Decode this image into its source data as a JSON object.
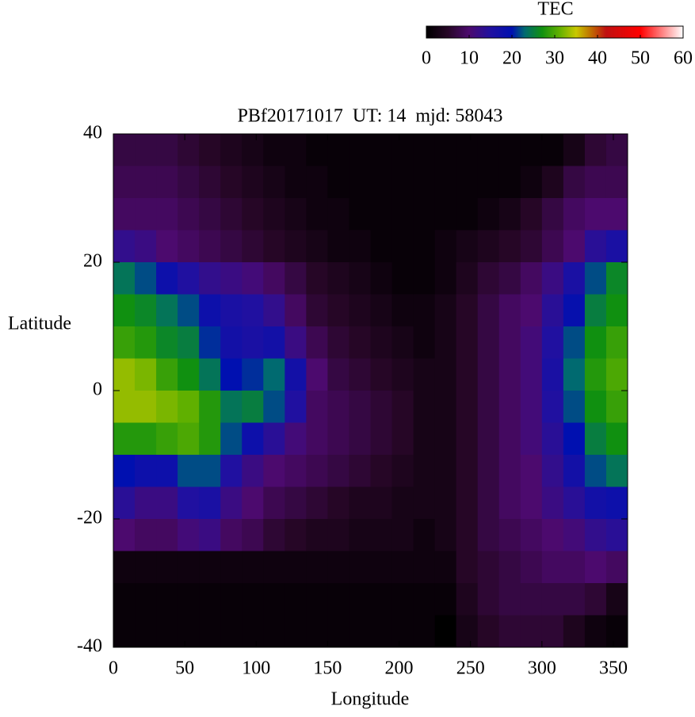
{
  "chart_data": {
    "type": "heatmap",
    "title": "PBf20171017  UT: 14  mjd: 58043",
    "xlabel": "Longitude",
    "ylabel": "Latitude",
    "colorbar_label": "TEC",
    "x": [
      7.5,
      22.5,
      37.5,
      52.5,
      67.5,
      82.5,
      97.5,
      112.5,
      127.5,
      142.5,
      157.5,
      172.5,
      187.5,
      202.5,
      217.5,
      232.5,
      247.5,
      262.5,
      277.5,
      292.5,
      307.5,
      322.5,
      337.5,
      352.5
    ],
    "y": [
      37.5,
      32.5,
      27.5,
      22.5,
      17.5,
      12.5,
      7.5,
      2.5,
      -2.5,
      -7.5,
      -12.5,
      -17.5,
      -22.5,
      -27.5,
      -32.5,
      -37.5
    ],
    "values": [
      [
        7,
        7,
        7,
        6,
        5,
        4,
        3,
        2,
        2,
        1,
        1,
        1,
        1,
        1,
        1,
        1,
        1,
        1,
        1,
        1,
        1,
        3,
        6,
        7
      ],
      [
        8,
        8,
        8,
        7,
        6,
        5,
        4,
        3,
        2,
        2,
        1,
        1,
        1,
        1,
        1,
        1,
        1,
        1,
        1,
        2,
        4,
        7,
        8,
        8
      ],
      [
        9,
        9,
        9,
        8,
        7,
        6,
        5,
        4,
        3,
        2,
        2,
        1,
        1,
        1,
        1,
        1,
        1,
        2,
        3,
        5,
        7,
        9,
        10,
        10
      ],
      [
        13,
        12,
        10,
        9,
        8,
        7,
        6,
        5,
        4,
        3,
        2,
        2,
        1,
        1,
        1,
        2,
        3,
        4,
        5,
        6,
        8,
        10,
        14,
        16
      ],
      [
        24,
        22,
        18,
        15,
        13,
        12,
        11,
        9,
        7,
        5,
        4,
        3,
        2,
        1,
        1,
        2,
        4,
        6,
        7,
        9,
        12,
        16,
        22,
        26
      ],
      [
        27,
        26,
        24,
        22,
        18,
        16,
        15,
        13,
        9,
        6,
        5,
        4,
        3,
        2,
        2,
        3,
        5,
        7,
        9,
        10,
        14,
        19,
        25,
        27
      ],
      [
        29,
        28,
        26,
        25,
        21,
        17,
        16,
        17,
        12,
        8,
        6,
        5,
        4,
        3,
        2,
        3,
        5,
        7,
        9,
        11,
        15,
        22,
        27,
        29
      ],
      [
        33,
        32,
        29,
        27,
        24,
        20,
        21,
        23,
        17,
        10,
        7,
        6,
        5,
        4,
        3,
        3,
        5,
        7,
        9,
        11,
        16,
        23,
        28,
        30
      ],
      [
        33,
        33,
        32,
        31,
        28,
        24,
        25,
        22,
        15,
        9,
        8,
        7,
        6,
        5,
        3,
        3,
        5,
        7,
        9,
        11,
        15,
        22,
        27,
        29
      ],
      [
        28,
        28,
        29,
        30,
        28,
        22,
        18,
        14,
        11,
        9,
        8,
        7,
        6,
        5,
        3,
        3,
        5,
        7,
        9,
        11,
        14,
        20,
        25,
        27
      ],
      [
        20,
        18,
        18,
        22,
        22,
        15,
        12,
        10,
        9,
        8,
        7,
        6,
        5,
        4,
        3,
        3,
        5,
        7,
        9,
        10,
        13,
        17,
        22,
        24
      ],
      [
        14,
        12,
        12,
        15,
        16,
        12,
        10,
        8,
        7,
        6,
        5,
        4,
        4,
        3,
        3,
        3,
        5,
        7,
        9,
        10,
        12,
        14,
        17,
        18
      ],
      [
        10,
        9,
        9,
        11,
        12,
        9,
        8,
        6,
        5,
        4,
        4,
        3,
        3,
        3,
        2,
        3,
        5,
        7,
        8,
        9,
        10,
        11,
        13,
        14
      ],
      [
        2,
        2,
        2,
        2,
        2,
        2,
        2,
        2,
        2,
        2,
        2,
        2,
        2,
        2,
        2,
        2,
        5,
        6,
        7,
        8,
        9,
        9,
        10,
        9
      ],
      [
        1,
        1,
        1,
        1,
        1,
        1,
        1,
        1,
        1,
        1,
        1,
        1,
        1,
        1,
        1,
        1,
        4,
        6,
        7,
        7,
        7,
        7,
        6,
        3
      ],
      [
        1,
        1,
        1,
        1,
        1,
        1,
        1,
        1,
        1,
        1,
        1,
        1,
        1,
        1,
        1,
        0,
        3,
        5,
        6,
        6,
        6,
        4,
        2,
        1
      ]
    ],
    "xlim": [
      0,
      360
    ],
    "xticks": [
      0,
      50,
      100,
      150,
      200,
      250,
      300,
      350
    ],
    "ylim": [
      -40,
      40
    ],
    "yticks": [
      -40,
      -20,
      0,
      20,
      40
    ],
    "clim": [
      0,
      60
    ],
    "cticks": [
      0,
      10,
      20,
      30,
      40,
      50,
      60
    ],
    "colorscale": [
      {
        "value": 0,
        "color": "#000000"
      },
      {
        "value": 5,
        "color": "#260626"
      },
      {
        "value": 10,
        "color": "#4c0a6e"
      },
      {
        "value": 15,
        "color": "#2010a0"
      },
      {
        "value": 20,
        "color": "#0010b0"
      },
      {
        "value": 23,
        "color": "#006a70"
      },
      {
        "value": 27,
        "color": "#109010"
      },
      {
        "value": 31,
        "color": "#60b000"
      },
      {
        "value": 35,
        "color": "#c8c800"
      },
      {
        "value": 38,
        "color": "#c07a00"
      },
      {
        "value": 42,
        "color": "#c01010"
      },
      {
        "value": 50,
        "color": "#ff0000"
      },
      {
        "value": 60,
        "color": "#ffffff"
      }
    ]
  }
}
